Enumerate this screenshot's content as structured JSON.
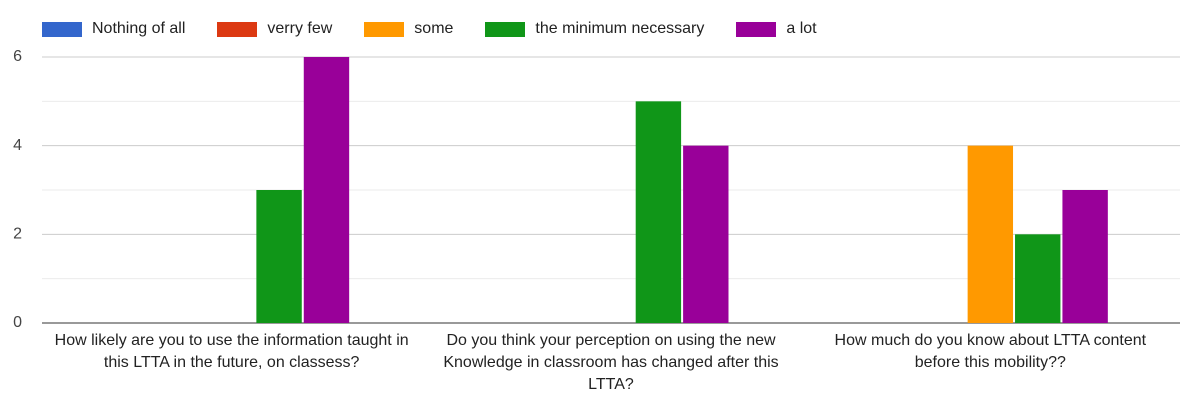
{
  "chart_data": {
    "type": "bar",
    "categories": [
      "How likely are you to use the information taught in this LTTA in the future, on classess?",
      "Do you think your perception on using the new Knowledge in classroom has changed after this LTTA?",
      "How much do you know about LTTA content before this mobility??"
    ],
    "series": [
      {
        "name": "Nothing of all",
        "color": "#3366cc",
        "values": [
          0,
          0,
          0
        ]
      },
      {
        "name": "verry few",
        "color": "#dc3912",
        "values": [
          0,
          0,
          0
        ]
      },
      {
        "name": "some",
        "color": "#ff9900",
        "values": [
          0,
          0,
          4
        ]
      },
      {
        "name": "the minimum necessary",
        "color": "#109618",
        "values": [
          3,
          5,
          2
        ]
      },
      {
        "name": "a lot",
        "color": "#990099",
        "values": [
          6,
          4,
          3
        ]
      }
    ],
    "ylim": [
      0,
      6
    ],
    "yticks": [
      0,
      2,
      4,
      6
    ],
    "minor_yticks": [
      1,
      3,
      5
    ],
    "grid": true,
    "legend": "top"
  }
}
